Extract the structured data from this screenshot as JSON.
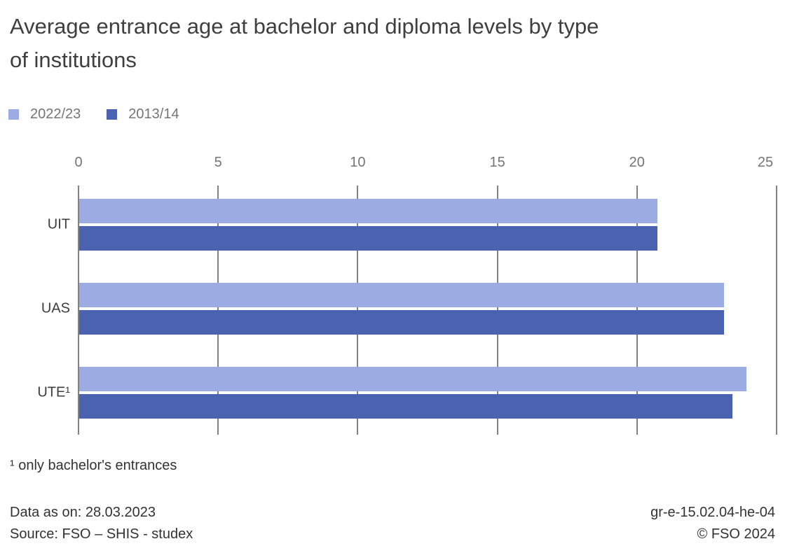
{
  "title": {
    "lines": [
      "Average entrance age at bachelor and diploma levels by type",
      "of institutions"
    ],
    "full": "Average entrance age at bachelor and diploma levels by type of institutions"
  },
  "legend": [
    {
      "label": "2022/23",
      "color": "#9cace3"
    },
    {
      "label": "2013/14",
      "color": "#4b62b0"
    }
  ],
  "chart_data": {
    "type": "bar",
    "orientation": "horizontal",
    "title": "Average entrance age at bachelor and diploma levels by type of institutions",
    "categories": [
      "UIT",
      "UAS",
      "UTE¹"
    ],
    "series": [
      {
        "name": "2022/23",
        "color": "#9cace3",
        "values": [
          20.7,
          23.1,
          23.9
        ]
      },
      {
        "name": "2013/14",
        "color": "#4b62b0",
        "values": [
          20.7,
          23.1,
          23.4
        ]
      }
    ],
    "xlim": [
      0,
      25
    ],
    "xticks": [
      "0",
      "5",
      "10",
      "15",
      "20",
      "25"
    ],
    "xlabel": "",
    "ylabel": "",
    "grid": true,
    "gridline_color": "#828282",
    "legend_position": "top-left"
  },
  "footnote": "¹ only bachelor's entrances",
  "footer": {
    "data_as_on": "Data as on: 28.03.2023",
    "source": "Source: FSO – SHIS - studex",
    "reference": "gr-e-15.02.04-he-04",
    "copyright": "© FSO 2024"
  }
}
